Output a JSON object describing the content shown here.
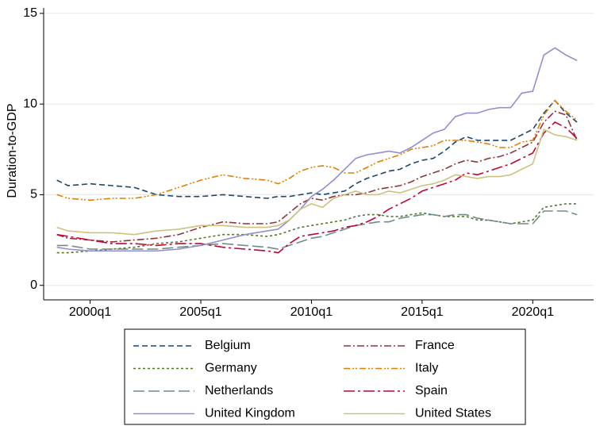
{
  "chart_data": {
    "type": "line",
    "y_label": "Duration-to-GDP",
    "x": [
      1998.5,
      1999,
      2000,
      2001,
      2002,
      2003,
      2004,
      2005,
      2006,
      2007,
      2008,
      2008.5,
      2009,
      2009.5,
      2010,
      2010.5,
      2011,
      2011.5,
      2012,
      2012.5,
      2013,
      2013.5,
      2014,
      2014.5,
      2015,
      2015.5,
      2016,
      2016.5,
      2017,
      2017.5,
      2018,
      2018.5,
      2019,
      2019.5,
      2020,
      2020.5,
      2021,
      2021.5,
      2022
    ],
    "xlim": [
      1997.9,
      2022.75
    ],
    "xticks": [
      {
        "value": 2000,
        "label": "2000q1"
      },
      {
        "value": 2005,
        "label": "2005q1"
      },
      {
        "value": 2010,
        "label": "2010q1"
      },
      {
        "value": 2015,
        "label": "2015q1"
      },
      {
        "value": 2020,
        "label": "2020q1"
      }
    ],
    "ylim": [
      -0.8,
      15.3
    ],
    "yticks": [
      0,
      5,
      10,
      15
    ],
    "grid": true,
    "legend": "bottom",
    "series": [
      {
        "name": "Belgium",
        "color": "#1a476f",
        "values": [
          5.8,
          5.5,
          5.6,
          5.5,
          5.4,
          5.0,
          4.9,
          4.9,
          5.0,
          4.9,
          4.8,
          4.9,
          4.9,
          5.0,
          5.1,
          5.0,
          5.1,
          5.2,
          5.6,
          5.9,
          6.1,
          6.3,
          6.4,
          6.7,
          6.9,
          7.0,
          7.4,
          7.9,
          8.2,
          8.0,
          8.0,
          8.0,
          8.0,
          8.3,
          8.6,
          9.5,
          10.2,
          9.5,
          9.0
        ]
      },
      {
        "name": "France",
        "color": "#90353b",
        "values": [
          2.8,
          2.6,
          2.5,
          2.4,
          2.5,
          2.6,
          2.8,
          3.2,
          3.5,
          3.4,
          3.4,
          3.5,
          4.0,
          4.5,
          4.8,
          4.7,
          4.9,
          5.0,
          5.0,
          5.1,
          5.3,
          5.4,
          5.5,
          5.7,
          6.0,
          6.2,
          6.4,
          6.7,
          6.9,
          6.8,
          7.0,
          7.1,
          7.3,
          7.6,
          7.9,
          9.0,
          9.6,
          9.4,
          8.0
        ]
      },
      {
        "name": "Germany",
        "color": "#55752f",
        "values": [
          1.8,
          1.8,
          1.9,
          2.0,
          2.1,
          2.3,
          2.4,
          2.6,
          2.8,
          2.8,
          2.7,
          2.8,
          3.0,
          3.2,
          3.3,
          3.4,
          3.5,
          3.6,
          3.8,
          3.9,
          3.9,
          3.8,
          3.8,
          3.9,
          4.0,
          3.9,
          3.8,
          3.8,
          3.8,
          3.6,
          3.6,
          3.5,
          3.4,
          3.5,
          3.6,
          4.3,
          4.4,
          4.5,
          4.5
        ]
      },
      {
        "name": "Italy",
        "color": "#e37e00",
        "values": [
          5.0,
          4.8,
          4.7,
          4.8,
          4.8,
          5.0,
          5.4,
          5.8,
          6.1,
          5.9,
          5.8,
          5.6,
          5.9,
          6.3,
          6.5,
          6.6,
          6.5,
          6.2,
          6.2,
          6.5,
          6.8,
          7.0,
          7.2,
          7.5,
          7.6,
          7.7,
          8.0,
          8.0,
          8.0,
          7.9,
          7.8,
          7.6,
          7.6,
          7.9,
          8.0,
          9.4,
          10.2,
          9.6,
          9.1
        ]
      },
      {
        "name": "Netherlands",
        "color": "#6e8e84",
        "values": [
          2.2,
          2.2,
          2.0,
          2.0,
          2.0,
          2.0,
          2.1,
          2.2,
          2.3,
          2.2,
          2.1,
          2.0,
          2.2,
          2.4,
          2.6,
          2.7,
          2.9,
          3.1,
          3.3,
          3.4,
          3.5,
          3.5,
          3.7,
          3.8,
          3.9,
          3.9,
          3.8,
          3.9,
          3.9,
          3.7,
          3.6,
          3.5,
          3.4,
          3.4,
          3.4,
          4.1,
          4.1,
          4.1,
          3.9
        ]
      },
      {
        "name": "Spain",
        "color": "#c10534",
        "values": [
          2.8,
          2.7,
          2.5,
          2.3,
          2.3,
          2.2,
          2.3,
          2.3,
          2.1,
          2.0,
          1.9,
          1.8,
          2.3,
          2.7,
          2.8,
          2.9,
          3.0,
          3.2,
          3.3,
          3.5,
          3.8,
          4.2,
          4.5,
          4.8,
          5.2,
          5.4,
          5.6,
          5.8,
          6.2,
          6.1,
          6.3,
          6.5,
          6.7,
          7.0,
          7.3,
          8.4,
          9.0,
          8.7,
          8.1
        ]
      },
      {
        "name": "United Kingdom",
        "color": "#938dd2",
        "values": [
          2.1,
          2.0,
          1.9,
          1.9,
          1.9,
          1.9,
          2.0,
          2.2,
          2.5,
          2.8,
          3.0,
          3.1,
          3.6,
          4.2,
          4.9,
          5.3,
          5.8,
          6.4,
          7.0,
          7.2,
          7.3,
          7.4,
          7.3,
          7.6,
          8.0,
          8.4,
          8.6,
          9.3,
          9.5,
          9.5,
          9.7,
          9.8,
          9.8,
          10.6,
          10.7,
          12.7,
          13.1,
          12.7,
          12.4
        ]
      },
      {
        "name": "United States",
        "color": "#cac27e",
        "values": [
          3.2,
          3.0,
          2.9,
          2.9,
          2.8,
          3.0,
          3.1,
          3.3,
          3.3,
          3.2,
          3.2,
          3.3,
          3.6,
          4.2,
          4.5,
          4.3,
          4.8,
          5.0,
          5.2,
          5.0,
          5.0,
          5.2,
          5.1,
          5.3,
          5.5,
          5.6,
          5.8,
          6.1,
          6.0,
          5.9,
          6.0,
          6.0,
          6.1,
          6.4,
          6.7,
          8.6,
          8.3,
          8.2,
          8.0
        ]
      }
    ]
  }
}
